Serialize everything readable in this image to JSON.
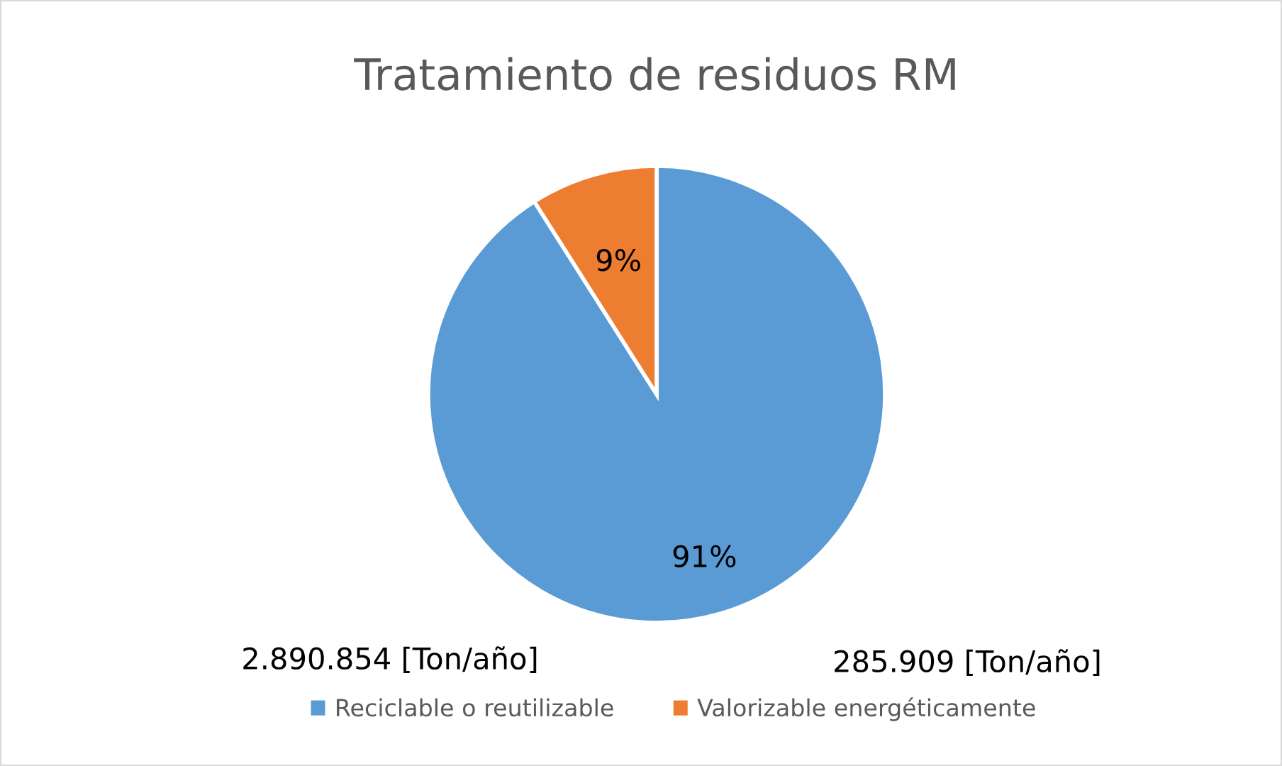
{
  "chart_data": {
    "type": "pie",
    "title": "Tratamiento de residuos RM",
    "categories": [
      "Reciclable o reutilizable",
      "Valorizable energéticamente"
    ],
    "values": [
      91,
      9
    ],
    "colors": [
      "#5b9bd5",
      "#ed7d31"
    ],
    "value_labels": [
      "91%",
      "9%"
    ],
    "annotations": [
      "2.890.854 [Ton/año]",
      "285.909 [Ton/año]"
    ],
    "legend": "bottom"
  }
}
